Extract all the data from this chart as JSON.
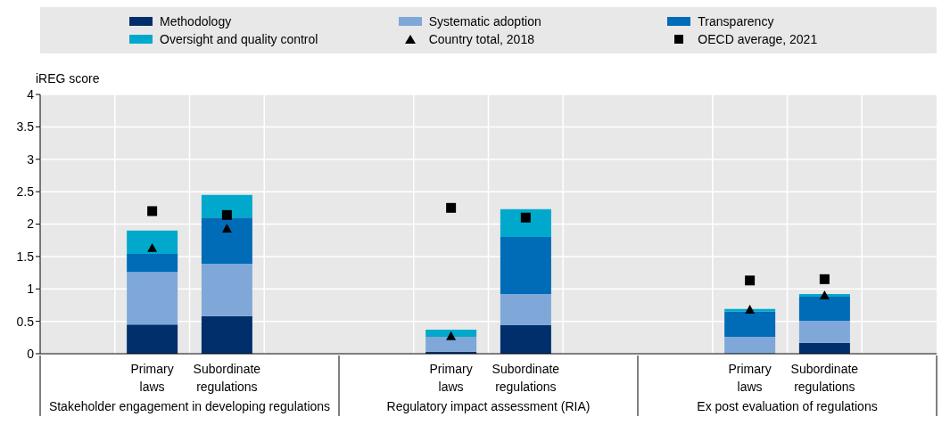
{
  "chart_data": {
    "type": "bar",
    "stacked": true,
    "ylabel": "iREG score",
    "legend": "top",
    "grid": true,
    "categories": [
      null,
      "Primary laws",
      "Subordinate regulations",
      null,
      null,
      "Primary laws",
      "Subordinate regulations",
      null,
      null,
      "Primary laws",
      "Subordinate regulations",
      null
    ],
    "annotations": [
      "Stakeholder engagement in developing regulations",
      "Regulatory impact assessment (RIA)",
      "Ex post evaluation of regulations"
    ],
    "ylim": [
      0,
      4
    ],
    "yticks": [
      0,
      0.5,
      1,
      1.5,
      2,
      2.5,
      3,
      3.5,
      4
    ],
    "series": [
      {
        "name": "Methodology",
        "color": "#002f6c",
        "values": [
          null,
          0.45,
          0.58,
          null,
          null,
          0.03,
          0.44,
          null,
          null,
          0,
          0.17,
          null
        ]
      },
      {
        "name": "Systematic adoption",
        "color": "#7fa8d9",
        "values": [
          null,
          0.81,
          0.81,
          null,
          null,
          0.23,
          0.48,
          null,
          null,
          0.26,
          0.34,
          null
        ]
      },
      {
        "name": "Transparency",
        "color": "#006bb6",
        "values": [
          null,
          0.28,
          0.71,
          null,
          null,
          0,
          0.88,
          null,
          null,
          0.39,
          0.37,
          null
        ]
      },
      {
        "name": "Oversight and quality control",
        "color": "#00a9cc",
        "values": [
          null,
          0.36,
          0.35,
          null,
          null,
          0.11,
          0.43,
          null,
          null,
          0.04,
          0.04,
          null
        ]
      },
      {
        "name": "Country total, 2018",
        "type": "scatter",
        "marker": "triangle",
        "color": "#000000",
        "values": [
          null,
          1.63,
          1.93,
          null,
          null,
          0.27,
          null,
          null,
          null,
          0.68,
          0.9,
          null
        ]
      },
      {
        "name": "OECD average, 2021",
        "type": "scatter",
        "marker": "square",
        "color": "#000000",
        "values": [
          null,
          2.2,
          2.14,
          null,
          null,
          2.25,
          2.1,
          null,
          null,
          1.13,
          1.15,
          null
        ]
      }
    ]
  }
}
